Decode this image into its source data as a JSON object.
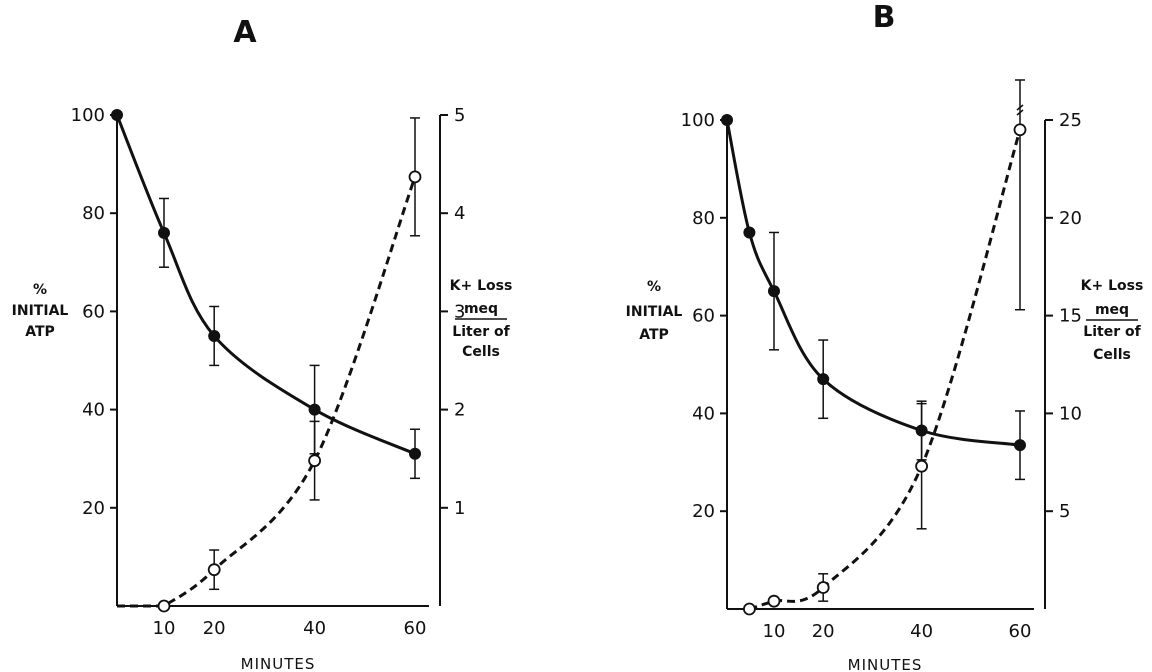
{
  "chart_data": [
    {
      "type": "line",
      "panel": "A",
      "xlabel": "MINUTES",
      "ylabel": [
        "%",
        "INITIAL",
        "ATP"
      ],
      "y2label": [
        "K+ Loss",
        "meq",
        "Liter of",
        "Cells"
      ],
      "xticks": [
        10,
        20,
        40,
        60
      ],
      "yticks": [
        20,
        40,
        60,
        80,
        100
      ],
      "y2ticks": [
        1,
        2,
        3,
        4,
        5
      ],
      "xlim": [
        0,
        60
      ],
      "ylim": [
        0,
        100
      ],
      "y2lim": [
        0,
        5
      ],
      "series": [
        {
          "axis": "left",
          "marker": "filled-circle",
          "line": "solid",
          "x": [
            0,
            10,
            20,
            40,
            60
          ],
          "y": [
            100,
            76,
            55,
            40,
            31
          ],
          "error": [
            0,
            7,
            6,
            9,
            5
          ]
        },
        {
          "axis": "right",
          "marker": "open-circle",
          "line": "dashed",
          "x": [
            10,
            20,
            40,
            60
          ],
          "y": [
            0,
            0.37,
            1.48,
            4.37
          ],
          "error": [
            0,
            0.2,
            0.4,
            0.6
          ],
          "lead_in_from_x": 0
        }
      ]
    },
    {
      "type": "line",
      "panel": "B",
      "xlabel": "MINUTES",
      "ylabel": [
        "%",
        "INITIAL",
        "ATP"
      ],
      "y2label": [
        "K+ Loss",
        "meq",
        "Liter of",
        "Cells"
      ],
      "xticks": [
        10,
        20,
        40,
        60
      ],
      "yticks": [
        20,
        40,
        60,
        80,
        100
      ],
      "y2ticks": [
        5,
        10,
        15,
        20,
        25
      ],
      "xlim": [
        0,
        60
      ],
      "ylim": [
        0,
        100
      ],
      "y2lim": [
        0,
        25
      ],
      "series": [
        {
          "axis": "left",
          "marker": "filled-circle",
          "line": "solid",
          "x": [
            0,
            5,
            10,
            20,
            40,
            60
          ],
          "y": [
            100,
            77,
            65,
            47,
            36.5,
            33.5
          ],
          "error": [
            0,
            0,
            12,
            8,
            6,
            7
          ]
        },
        {
          "axis": "right",
          "marker": "open-circle",
          "line": "dashed",
          "x": [
            5,
            10,
            20,
            40,
            60
          ],
          "y": [
            0,
            0.4,
            1.1,
            7.3,
            24.5
          ],
          "error": [
            0,
            0,
            0.7,
            3.2,
            9.2
          ],
          "axis_break": true
        }
      ]
    }
  ]
}
